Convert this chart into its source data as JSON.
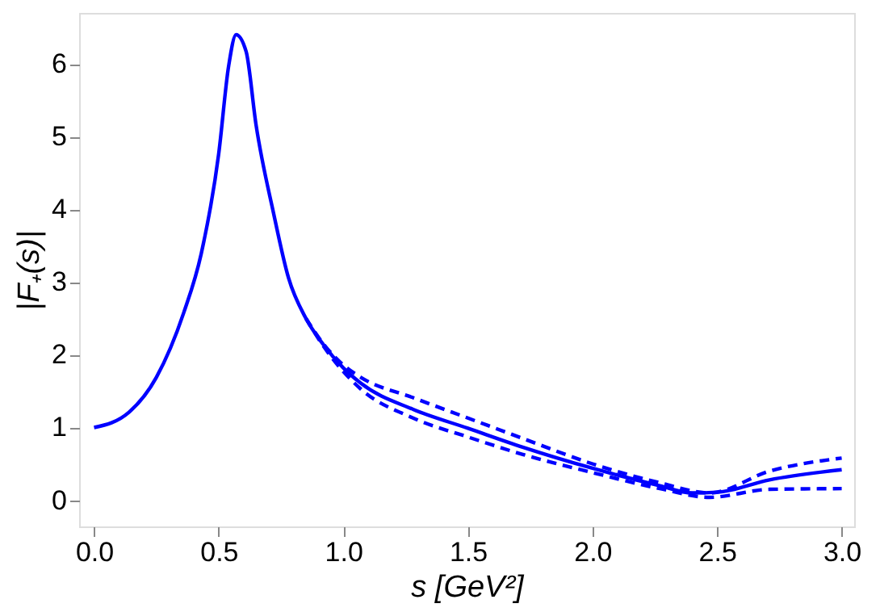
{
  "chart_data": {
    "type": "line",
    "xlabel": "s [GeV²]",
    "ylabel": "|F₊(s)|",
    "xlim": [
      -0.06,
      3.05
    ],
    "ylim": [
      -0.36,
      6.7
    ],
    "xticks": [
      {
        "value": 0,
        "label": "0.0"
      },
      0.5,
      {
        "value": 1,
        "label": "1.0"
      },
      1.5,
      {
        "value": 2,
        "label": "2.0"
      },
      2.5,
      {
        "value": 3,
        "label": "3.0"
      }
    ],
    "yticks": [
      0,
      1,
      2,
      3,
      4,
      5,
      6
    ],
    "grid": false,
    "series": [
      {
        "color": "#0000ff",
        "line_style": "solid",
        "x": [
          0,
          0.14,
          0.25,
          0.36,
          0.43,
          0.5,
          0.54,
          0.57,
          0.61,
          0.65,
          0.72,
          0.78,
          0.85,
          0.92,
          1.0,
          1.07,
          1.28,
          1.5,
          1.72,
          2.0,
          2.27,
          2.4,
          2.5,
          2.71,
          3.0
        ],
        "values": [
          1.0,
          1.21,
          1.69,
          2.58,
          3.39,
          4.76,
          5.97,
          6.4,
          6.17,
          5.16,
          3.95,
          3.06,
          2.5,
          2.14,
          1.82,
          1.61,
          1.25,
          0.99,
          0.73,
          0.44,
          0.2,
          0.1,
          0.11,
          0.28,
          0.42
        ]
      },
      {
        "color": "#0000ff",
        "line_style": "dashed",
        "x": [
          0.85,
          0.92,
          1.0,
          1.07,
          1.28,
          1.5,
          1.72,
          2.0,
          2.27,
          2.47,
          2.71,
          3.0
        ],
        "values": [
          2.5,
          2.15,
          1.86,
          1.69,
          1.41,
          1.13,
          0.85,
          0.5,
          0.24,
          0.1,
          0.4,
          0.58
        ]
      },
      {
        "color": "#0000ff",
        "line_style": "dashed",
        "x": [
          0.85,
          0.92,
          1.0,
          1.07,
          1.28,
          1.5,
          1.72,
          2.0,
          2.27,
          2.47,
          2.71,
          3.0
        ],
        "values": [
          2.5,
          2.12,
          1.77,
          1.53,
          1.13,
          0.87,
          0.63,
          0.38,
          0.16,
          0.04,
          0.15,
          0.16
        ]
      }
    ]
  }
}
